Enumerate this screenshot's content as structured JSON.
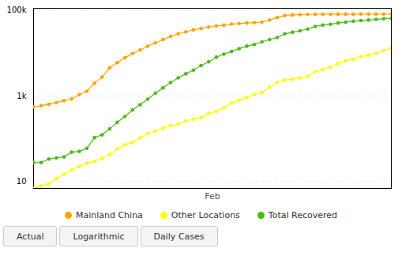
{
  "chart_data": {
    "type": "line",
    "xlabel": "Feb",
    "x": [
      0,
      1,
      2,
      3,
      4,
      5,
      6,
      7,
      8,
      9,
      10,
      11,
      12,
      13,
      14,
      15,
      16,
      17,
      18,
      19,
      20,
      21,
      22,
      23,
      24,
      25,
      26,
      27,
      28,
      29,
      30,
      31,
      32,
      33,
      34,
      35,
      36,
      37,
      38,
      39,
      40,
      41,
      42,
      43,
      44,
      45,
      46,
      47
    ],
    "xlim": [
      0,
      47
    ],
    "series": [
      {
        "name": "Mainland China",
        "color": "#FFA500",
        "values": [
          549,
          590,
          640,
          700,
          778,
          851,
          1072,
          1287,
          1975,
          2744,
          4515,
          5974,
          7736,
          9720,
          11791,
          14380,
          17205,
          20438,
          24324,
          28018,
          31161,
          34546,
          37198,
          40171,
          42638,
          44386,
          46997,
          48548,
          49970,
          51091,
          52526,
          58182,
          67103,
          74576,
          77022,
          78190,
          79251,
          80026,
          80151,
          80271,
          80304,
          80422,
          80573,
          80651,
          80695,
          80735,
          80754,
          80778
        ]
      },
      {
        "name": "Other Locations",
        "color": "#FFFF00",
        "values": [
          7,
          8,
          9,
          12,
          15,
          19,
          23,
          27,
          30,
          35,
          43,
          59,
          73,
          82,
          106,
          132,
          153,
          176,
          203,
          221,
          259,
          288,
          309,
          395,
          441,
          526,
          683,
          794,
          928,
          1073,
          1200,
          1598,
          2069,
          2337,
          2460,
          2649,
          2836,
          3664,
          4131,
          4691,
          5765,
          6550,
          7169,
          8238,
          8886,
          9826,
          11374,
          13006
        ]
      },
      {
        "name": "Total Recovered",
        "color": "#4CBB17",
        "values": [
          28,
          28,
          34,
          36,
          38,
          49,
          51,
          60,
          107,
          124,
          171,
          243,
          332,
          471,
          623,
          843,
          1153,
          1540,
          2050,
          2649,
          3281,
          3996,
          5081,
          6217,
          7977,
          9419,
          10865,
          12583,
          14448,
          15862,
          18177,
          20659,
          22888,
          27905,
          30384,
          32898,
          36117,
          41625,
          44810,
          46779,
          49856,
          52292,
          54955,
          56927,
          58684,
          60655,
          62793,
          64137
        ]
      }
    ],
    "ylim": [
      7,
      110000
    ],
    "yticks": [
      10,
      {
        "value": 1000,
        "label": "1k"
      },
      {
        "value": 100000,
        "label": "100k"
      }
    ],
    "log": "y",
    "grid": true,
    "marker": "circle",
    "tick_labels": "y",
    "annotations": [
      "Actual",
      "Logarithmic",
      "Daily Cases"
    ]
  }
}
